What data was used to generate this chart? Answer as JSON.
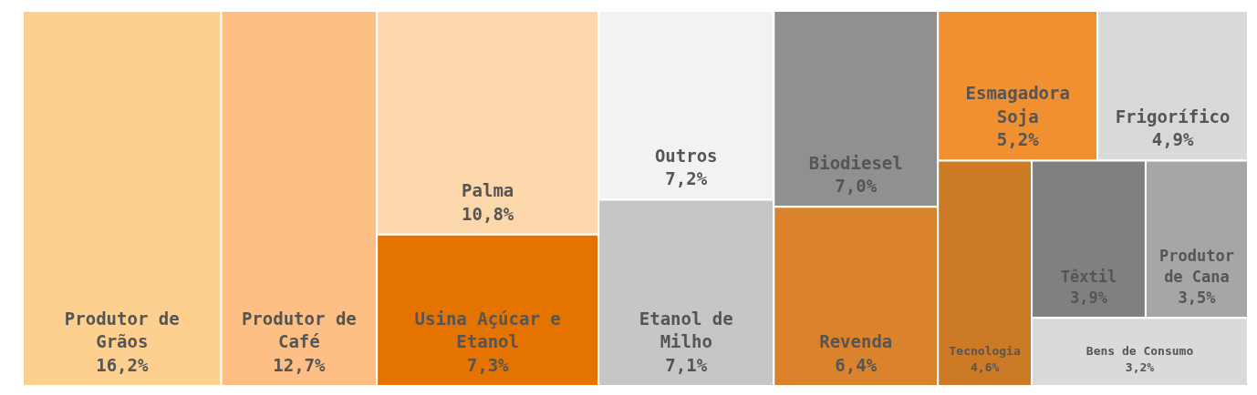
{
  "chart_data": {
    "type": "other",
    "categories": [
      "Produtor de Grãos",
      "Produtor de Café",
      "Palma",
      "Usina Açúcar e Etanol",
      "Outros",
      "Etanol de Milho",
      "Biodiesel",
      "Revenda",
      "Esmagadora Soja",
      "Frigorífico",
      "Tecnologia",
      "Têxtil",
      "Produtor de Cana",
      "Bens de Consumo"
    ],
    "values": [
      16.2,
      12.7,
      10.8,
      7.3,
      7.2,
      7.1,
      7.0,
      6.4,
      5.2,
      4.9,
      4.6,
      3.9,
      3.5,
      3.2
    ],
    "value_labels": [
      "16,2%",
      "12,7%",
      "10,8%",
      "7,3%",
      "7,2%",
      "7,1%",
      "7,0%",
      "6,4%",
      "5,2%",
      "4,9%",
      "4,6%",
      "3,9%",
      "3,5%",
      "3,2%"
    ],
    "colors": [
      "#fdd08f",
      "#fdbf83",
      "#fdd7ac",
      "#e57300",
      "#f2f2f2",
      "#c6c6c6",
      "#909090",
      "#db832c",
      "#f09030",
      "#d9d9d9",
      "#cd7a26",
      "#808080",
      "#a6a6a6",
      "#dadada"
    ]
  }
}
